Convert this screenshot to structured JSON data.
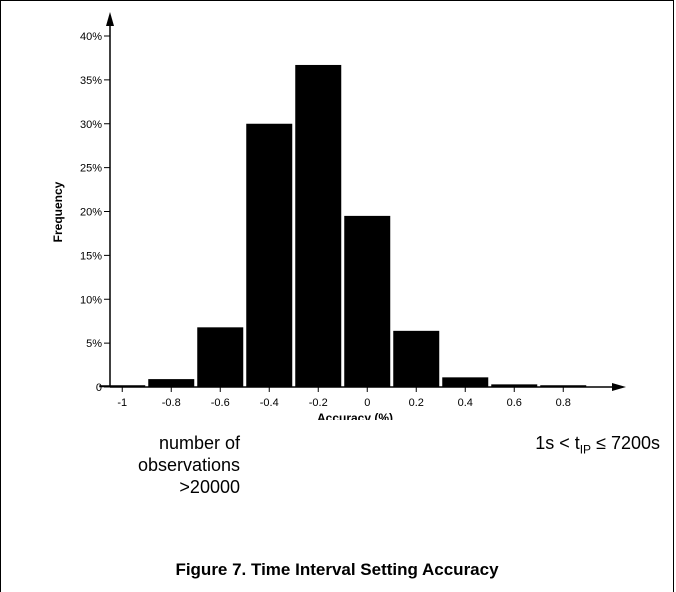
{
  "chart_data": {
    "type": "bar",
    "title": "",
    "xlabel": "Accuracy (%)",
    "ylabel": "Frequency",
    "categories": [
      "-1",
      "-0.8",
      "-0.6",
      "-0.4",
      "-0.2",
      "0",
      "0.2",
      "0.4",
      "0.6",
      "0.8"
    ],
    "x_ticks": [
      "-1",
      "-0.8",
      "-0.6",
      "-0.4",
      "-0.2",
      "0",
      "0.2",
      "0.4",
      "0.6",
      "0.8"
    ],
    "bin_centers": [
      -1.0,
      -0.8,
      -0.6,
      -0.4,
      -0.2,
      0.0,
      0.2,
      0.4,
      0.6,
      0.8
    ],
    "values": [
      0.2,
      0.9,
      6.8,
      30.0,
      36.7,
      19.5,
      6.4,
      1.1,
      0.3,
      0.2
    ],
    "ylim": [
      0,
      40
    ],
    "xlim": [
      -1.05,
      0.95
    ],
    "y_ticks": [
      "0",
      "5%",
      "10%",
      "15%",
      "20%",
      "25%",
      "30%",
      "35%",
      "40%"
    ],
    "y_tick_values": [
      0,
      5,
      10,
      15,
      20,
      25,
      30,
      35,
      40
    ],
    "bar_color": "#000000",
    "grid": false
  },
  "notes": {
    "left_line1": "number of",
    "left_line2": "observations",
    "left_line3": ">20000",
    "right_prefix": "1s < t",
    "right_sub": "IP",
    "right_suffix": " ≤ 7200s"
  },
  "caption": "Figure 7.  Time Interval Setting Accuracy"
}
